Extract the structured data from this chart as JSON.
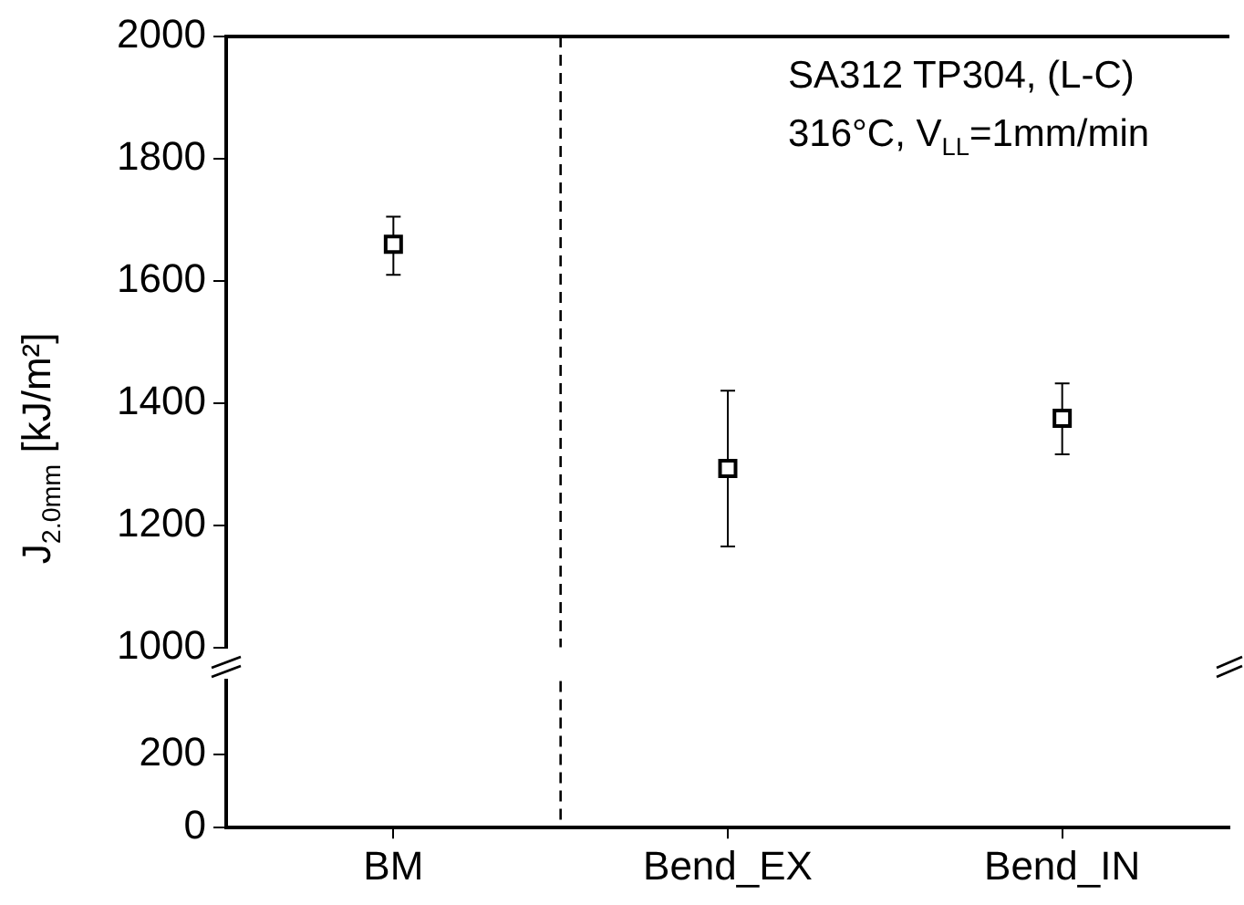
{
  "chart_data": [
    {
      "type": "scatter",
      "ylabel": "J$_{2.0mm}$ [kJ/m²]",
      "annotations": [
        "SA312 TP304, (L-C)",
        "316°C, V$_{LL}$=1mm/min"
      ],
      "categories": [
        null,
        null,
        null
      ],
      "series": [
        {
          "color": "#000000",
          "values": [
            1660,
            1293,
            1375
          ],
          "errors": [
            [
              1610,
              1705
            ],
            [
              1165,
              1420
            ],
            [
              1316,
              1432
            ]
          ]
        }
      ],
      "ylim": [
        1000,
        2000
      ],
      "yticks": [
        1000,
        1200,
        1400,
        1600,
        1800,
        2000
      ],
      "marker": "square",
      "tick_labels": "y",
      "grid": false,
      "legend": false
    },
    {
      "type": "scatter",
      "categories": [
        "BM",
        "Bend_EX",
        "Bend_IN"
      ],
      "series": [
        {
          "color": "#000000",
          "values": [
            null,
            null,
            null
          ]
        }
      ],
      "ylim": [
        0,
        400
      ],
      "yticks": [
        0,
        200
      ],
      "marker": "square",
      "grid": false,
      "legend": false
    }
  ]
}
